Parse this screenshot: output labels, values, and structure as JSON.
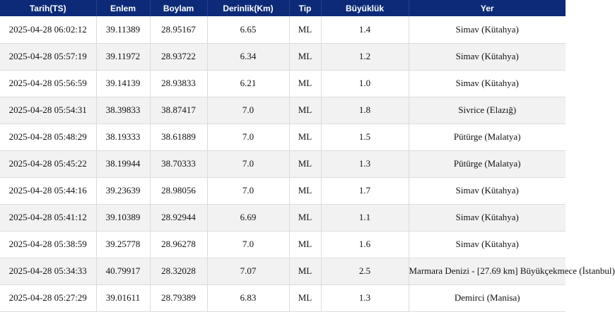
{
  "table": {
    "columns": [
      "Tarih(TS)",
      "Enlem",
      "Boylam",
      "Derinlik(Km)",
      "Tip",
      "Büyüklük",
      "Yer"
    ],
    "rows": [
      [
        "2025-04-28 06:02:12",
        "39.11389",
        "28.95167",
        "6.65",
        "ML",
        "1.4",
        "Simav (Kütahya)"
      ],
      [
        "2025-04-28 05:57:19",
        "39.11972",
        "28.93722",
        "6.34",
        "ML",
        "1.2",
        "Simav (Kütahya)"
      ],
      [
        "2025-04-28 05:56:59",
        "39.14139",
        "28.93833",
        "6.21",
        "ML",
        "1.0",
        "Simav (Kütahya)"
      ],
      [
        "2025-04-28 05:54:31",
        "38.39833",
        "38.87417",
        "7.0",
        "ML",
        "1.8",
        "Sivrice (Elazığ)"
      ],
      [
        "2025-04-28 05:48:29",
        "38.19333",
        "38.61889",
        "7.0",
        "ML",
        "1.5",
        "Pütürge (Malatya)"
      ],
      [
        "2025-04-28 05:45:22",
        "38.19944",
        "38.70333",
        "7.0",
        "ML",
        "1.3",
        "Pütürge (Malatya)"
      ],
      [
        "2025-04-28 05:44:16",
        "39.23639",
        "28.98056",
        "7.0",
        "ML",
        "1.7",
        "Simav (Kütahya)"
      ],
      [
        "2025-04-28 05:41:12",
        "39.10389",
        "28.92944",
        "6.69",
        "ML",
        "1.1",
        "Simav (Kütahya)"
      ],
      [
        "2025-04-28 05:38:59",
        "39.25778",
        "28.96278",
        "7.0",
        "ML",
        "1.6",
        "Simav (Kütahya)"
      ],
      [
        "2025-04-28 05:34:33",
        "40.79917",
        "28.32028",
        "7.07",
        "ML",
        "2.5",
        "Marmara Denizi - [27.69 km] Büyükçekmece (İstanbul)"
      ],
      [
        "2025-04-28 05:27:29",
        "39.01611",
        "28.79389",
        "6.83",
        "ML",
        "1.3",
        "Demirci (Manisa)"
      ]
    ]
  },
  "colors": {
    "header_bg": "#0c2a78",
    "header_text": "#ffffff",
    "row_alt_bg": "#f2f2f2"
  }
}
